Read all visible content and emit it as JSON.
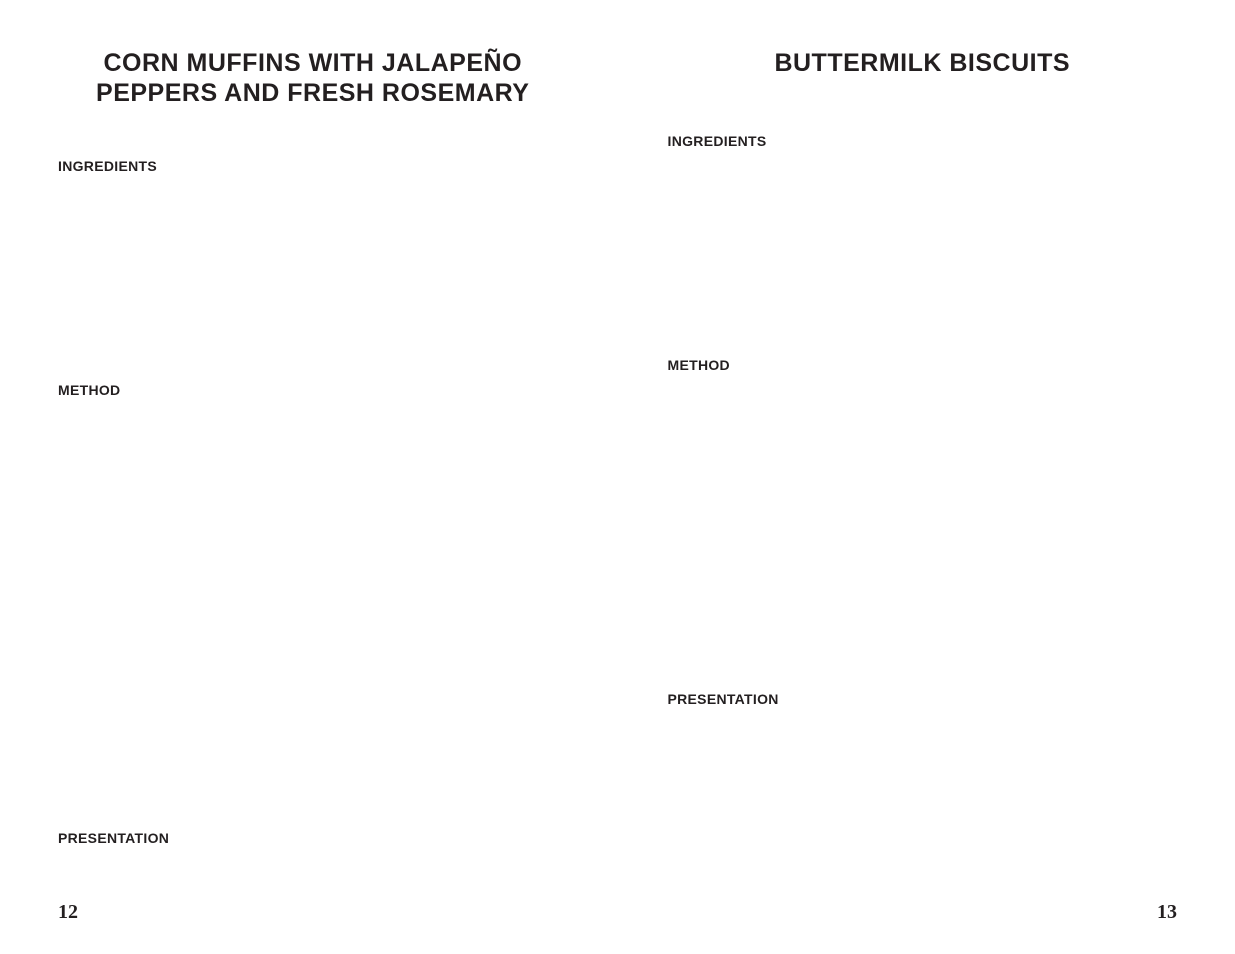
{
  "left_page": {
    "title": "CORN MUFFINS WITH JALAPEÑO PEPPERS AND FRESH ROSEMARY",
    "sections": {
      "ingredients_label": "INGREDIENTS",
      "method_label": "METHOD",
      "presentation_label": "PRESENTATION"
    },
    "page_number": "12"
  },
  "right_page": {
    "title": "BUTTERMILK BISCUITS",
    "sections": {
      "ingredients_label": "INGREDIENTS",
      "method_label": "METHOD",
      "presentation_label": "PRESENTATION"
    },
    "page_number": "13"
  },
  "styling": {
    "background_color": "#ffffff",
    "text_color": "#231f20",
    "title_fontsize": 25,
    "title_fontweight": 700,
    "section_heading_fontsize": 14,
    "section_heading_fontweight": 900,
    "page_number_fontsize": 20,
    "page_number_fontfamily": "serif",
    "body_fontfamily": "sans-serif"
  }
}
